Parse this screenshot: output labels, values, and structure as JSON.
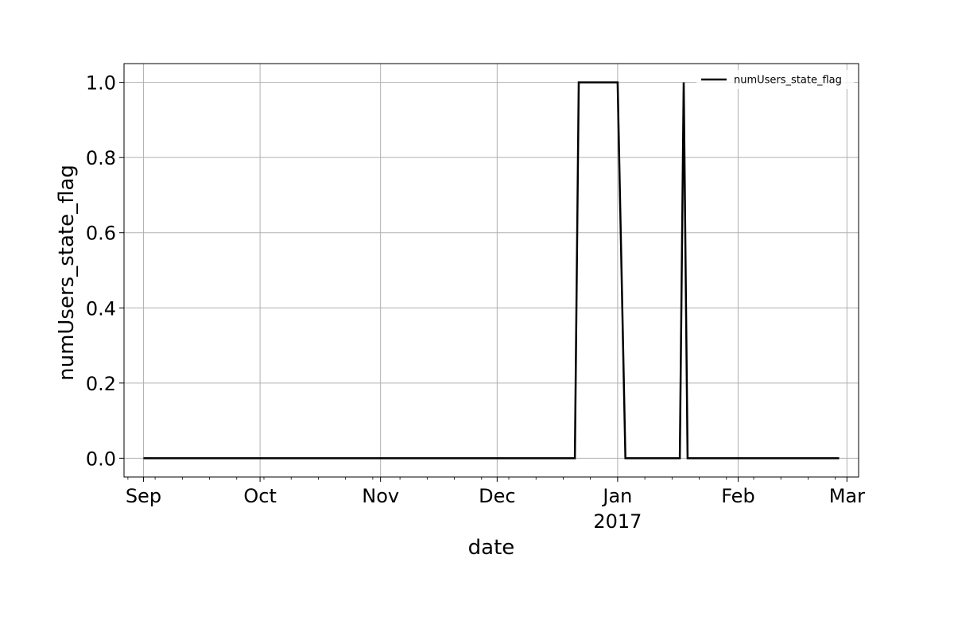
{
  "chart_data": {
    "type": "line",
    "xlabel": "date",
    "ylabel": "numUsers_state_flag",
    "x_type": "date",
    "xlim": [
      "2016-08-27",
      "2017-03-04"
    ],
    "ylim": [
      -0.05,
      1.05
    ],
    "grid": true,
    "legend_position": "top-right",
    "x_ticks": [
      {
        "date": "2016-09-01",
        "label": "Sep"
      },
      {
        "date": "2016-10-01",
        "label": "Oct"
      },
      {
        "date": "2016-11-01",
        "label": "Nov"
      },
      {
        "date": "2016-12-01",
        "label": "Dec"
      },
      {
        "date": "2017-01-01",
        "label": "Jan"
      },
      {
        "date": "2017-02-01",
        "label": "Feb"
      },
      {
        "date": "2017-03-01",
        "label": "Mar"
      }
    ],
    "x_year_label": "2017",
    "y_ticks": [
      {
        "value": 0.0,
        "label": "0.0"
      },
      {
        "value": 0.2,
        "label": "0.2"
      },
      {
        "value": 0.4,
        "label": "0.4"
      },
      {
        "value": 0.6,
        "label": "0.6"
      },
      {
        "value": 0.8,
        "label": "0.8"
      },
      {
        "value": 1.0,
        "label": "1.0"
      }
    ],
    "series": [
      {
        "name": "numUsers_state_flag",
        "color": "#000000",
        "points": [
          {
            "x": "2016-09-01",
            "y": 0
          },
          {
            "x": "2016-12-21",
            "y": 0
          },
          {
            "x": "2016-12-22",
            "y": 1
          },
          {
            "x": "2017-01-01",
            "y": 1
          },
          {
            "x": "2017-01-03",
            "y": 0
          },
          {
            "x": "2017-01-17",
            "y": 0
          },
          {
            "x": "2017-01-18",
            "y": 1
          },
          {
            "x": "2017-01-19",
            "y": 0
          },
          {
            "x": "2017-02-27",
            "y": 0
          }
        ]
      }
    ]
  }
}
